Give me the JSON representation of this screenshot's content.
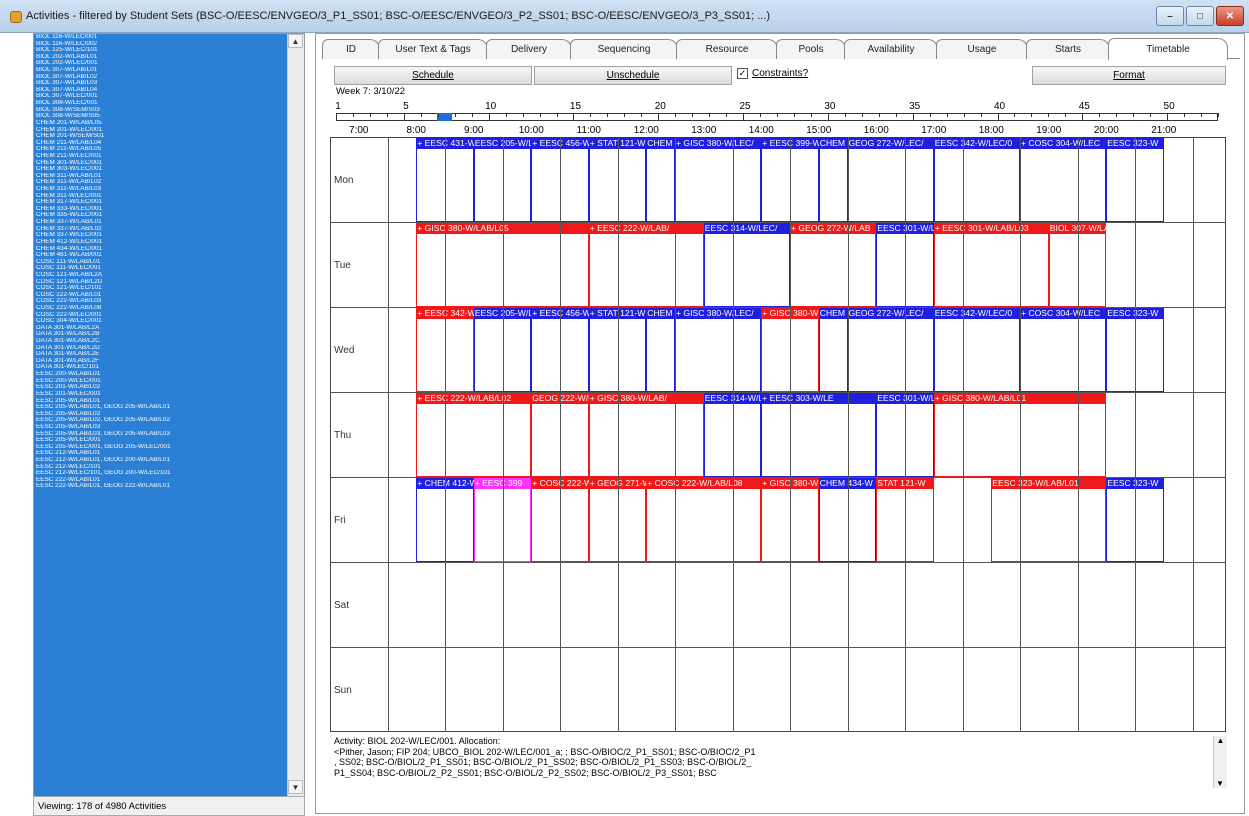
{
  "window": {
    "title": "Activities - filtered by Student Sets (BSC-O/EESC/ENVGEO/3_P1_SS01; BSC-O/EESC/ENVGEO/3_P2_SS01; BSC-O/EESC/ENVGEO/3_P3_SS01; ...)"
  },
  "activities_list": [
    "BIOL 116-W/LEC/001",
    "BIOL 116-W/LEC/002",
    "BIOL 125-W/LEC/101",
    "BIOL 202-W/LAB/L01",
    "BIOL 202-W/LEC/001",
    "BIOL 307-W/LAB/L01",
    "BIOL 307-W/LAB/L02",
    "BIOL 307-W/LAB/L03",
    "BIOL 307-W/LAB/L04",
    "BIOL 307-W/LEC/001",
    "BIOL 308-W/LEC/001",
    "BIOL 308-W/SEM/S03",
    "BIOL 308-W/SEM/S05",
    "CHEM 201-W/LAB/L05",
    "CHEM 201-W/LEC/001",
    "CHEM 201-W/SEM/S01",
    "CHEM 211-W/LAB/L04",
    "CHEM 211-W/LAB/L05",
    "CHEM 211-W/LEC/001",
    "CHEM 301-W/LEC/001",
    "CHEM 303-W/LEC/001",
    "CHEM 311-W/LAB/L01",
    "CHEM 311-W/LAB/L02",
    "CHEM 311-W/LAB/L03",
    "CHEM 311-W/LEC/001",
    "CHEM 317-W/LEC/001",
    "CHEM 333-W/LEC/001",
    "CHEM 335-W/LEC/001",
    "CHEM 337-W/LAB/L01",
    "CHEM 337-W/LAB/L02",
    "CHEM 337-W/LEC/001",
    "CHEM 412-W/LEC/001",
    "CHEM 434-W/LEC/001",
    "CHEM 461-W/LAB/001",
    "COSC 111-W/LAB/L01",
    "COSC 111-W/LEC/001",
    "COSC 121-W/LAB/L2A",
    "COSC 121-W/LAB/L2D",
    "COSC 121-W/LEC/101",
    "COSC 222-W/LAB/L01",
    "COSC 222-W/LAB/L03",
    "COSC 222-W/LAB/L08",
    "COSC 222-W/LEC/001",
    "COSC 304-W/LEC/001",
    "DATA 301-W/LAB/L2A",
    "DATA 301-W/LAB/L2B",
    "DATA 301-W/LAB/L2C",
    "DATA 301-W/LAB/L2D",
    "DATA 301-W/LAB/L2E",
    "DATA 301-W/LAB/L2F",
    "DATA 301-W/LEC/101",
    "EESC 200-W/LAB/L01",
    "EESC 200-W/LEC/001",
    "EESC 201-W/LAB/L02",
    "EESC 201-W/LEC/001",
    "EESC 205-W/LAB/L01",
    "EESC 205-W/LAB/L01, GEOG 205-W/LAB/L01",
    "EESC 205-W/LAB/L02",
    "EESC 205-W/LAB/L02, GEOG 205-W/LAB/L02",
    "EESC 205-W/LAB/L03",
    "EESC 205-W/LAB/L03, GEOG 205-W/LAB/L03",
    "EESC 205-W/LEC/001",
    "EESC 205-W/LEC/001, GEOG 205-W/LEC/001",
    "EESC 212-W/LAB/L01",
    "EESC 212-W/LAB/L01, GEOG 200-W/LAB/L01",
    "EESC 212-W/LEC/101",
    "EESC 212-W/LEC/101, GEOG 200-W/LEC/101",
    "EESC 222-W/LAB/L01",
    "EESC 222-W/LAB/L01, GEOG 222-W/LAB/L01"
  ],
  "list_status": "Viewing: 178 of 4980 Activities",
  "tabs": [
    "ID",
    "User Text & Tags",
    "Delivery",
    "Sequencing",
    "Resource",
    "Pools",
    "Availability",
    "Usage",
    "Starts",
    "Timetable"
  ],
  "toolbar": {
    "schedule": "Schedule",
    "unschedule": "Unschedule",
    "constraints": "Constraints?",
    "constraints_checked": "✓",
    "format": "Format"
  },
  "week": {
    "label": "Week 7: 3/10/22",
    "numbers": [
      "1",
      "5",
      "10",
      "15",
      "20",
      "25",
      "30",
      "35",
      "40",
      "45",
      "50"
    ]
  },
  "hours": [
    "7:00",
    "8:00",
    "9:00",
    "10:00",
    "11:00",
    "12:00",
    "13:00",
    "14:00",
    "15:00",
    "16:00",
    "17:00",
    "18:00",
    "19:00",
    "20:00",
    "21:00"
  ],
  "days": [
    "Mon",
    "Tue",
    "Wed",
    "Thu",
    "Fri",
    "Sat",
    "Sun"
  ],
  "events": [
    {
      "day": 0,
      "start": 8,
      "end": 9,
      "color": "blue",
      "label": "+ EESC 431-W"
    },
    {
      "day": 0,
      "start": 9,
      "end": 10,
      "color": "blue",
      "label": "EESC 205-W/L"
    },
    {
      "day": 0,
      "start": 10,
      "end": 11,
      "color": "blue",
      "label": "+ EESC 456-W"
    },
    {
      "day": 0,
      "start": 11,
      "end": 12,
      "color": "blue",
      "label": "+ STAT 121-W"
    },
    {
      "day": 0,
      "start": 12,
      "end": 12.5,
      "color": "blue",
      "label": "CHEM"
    },
    {
      "day": 0,
      "start": 12.5,
      "end": 14,
      "color": "blue",
      "label": "+ GISC 380-W/LEC/"
    },
    {
      "day": 0,
      "start": 14,
      "end": 15,
      "color": "blue",
      "label": "+ EESC 399-W"
    },
    {
      "day": 0,
      "start": 15,
      "end": 15.5,
      "color": "blue",
      "label": "CHEM"
    },
    {
      "day": 0,
      "start": 15.5,
      "end": 17,
      "color": "blue",
      "label": "GEOG 272-W/LEC/"
    },
    {
      "day": 0,
      "start": 17,
      "end": 18.5,
      "color": "blue",
      "label": "EESC 342-W/LEC/0"
    },
    {
      "day": 0,
      "start": 18.5,
      "end": 20,
      "color": "blue",
      "label": "+ COSC 304-W/LEC"
    },
    {
      "day": 0,
      "start": 20,
      "end": 21,
      "color": "blue",
      "label": "EESC 323-W"
    },
    {
      "day": 1,
      "start": 8,
      "end": 11,
      "color": "red",
      "label": "+ GISC 380-W/LAB/L05"
    },
    {
      "day": 1,
      "start": 11,
      "end": 13,
      "color": "red",
      "label": "+ EESC 222-W/LAB/"
    },
    {
      "day": 1,
      "start": 13,
      "end": 14.5,
      "color": "blue",
      "label": "EESC 314-W/LEC/"
    },
    {
      "day": 1,
      "start": 14.5,
      "end": 16,
      "color": "red",
      "label": "+ GEOG 272-W/LAB"
    },
    {
      "day": 1,
      "start": 16,
      "end": 17,
      "color": "blue",
      "label": "EESC 301-W/LEC/"
    },
    {
      "day": 1,
      "start": 17,
      "end": 19,
      "color": "red",
      "label": "+ EESC 301-W/LAB/L03"
    },
    {
      "day": 1,
      "start": 19,
      "end": 20,
      "color": "red",
      "label": "BIOL 307-W/LA"
    },
    {
      "day": 2,
      "start": 8,
      "end": 9,
      "color": "red",
      "label": "+ EESC 342-W"
    },
    {
      "day": 2,
      "start": 9,
      "end": 10,
      "color": "blue",
      "label": "EESC 205-W/L"
    },
    {
      "day": 2,
      "start": 10,
      "end": 11,
      "color": "blue",
      "label": "+ EESC 456-W"
    },
    {
      "day": 2,
      "start": 11,
      "end": 12,
      "color": "blue",
      "label": "+ STAT 121-W"
    },
    {
      "day": 2,
      "start": 12,
      "end": 12.5,
      "color": "blue",
      "label": "CHEM"
    },
    {
      "day": 2,
      "start": 12.5,
      "end": 14,
      "color": "blue",
      "label": "+ GISC 380-W/LEC/"
    },
    {
      "day": 2,
      "start": 14,
      "end": 15,
      "color": "red",
      "label": "+ GISC 380-W"
    },
    {
      "day": 2,
      "start": 15,
      "end": 15.5,
      "color": "blue",
      "label": "CHEM"
    },
    {
      "day": 2,
      "start": 15.5,
      "end": 17,
      "color": "blue",
      "label": "GEOG 272-W/LEC/"
    },
    {
      "day": 2,
      "start": 17,
      "end": 18.5,
      "color": "blue",
      "label": "EESC 342-W/LEC/0"
    },
    {
      "day": 2,
      "start": 18.5,
      "end": 20,
      "color": "blue",
      "label": "+ COSC 304-W/LEC"
    },
    {
      "day": 2,
      "start": 20,
      "end": 21,
      "color": "blue",
      "label": "EESC 323-W"
    },
    {
      "day": 3,
      "start": 8,
      "end": 10,
      "color": "red",
      "label": "+ EESC 222-W/LAB/L02"
    },
    {
      "day": 3,
      "start": 10,
      "end": 11,
      "color": "red",
      "label": "GEOG 222-W/L"
    },
    {
      "day": 3,
      "start": 11,
      "end": 13,
      "color": "red",
      "label": "+ GISC 380-W/LAB/"
    },
    {
      "day": 3,
      "start": 13,
      "end": 14,
      "color": "blue",
      "label": "EESC 314-W/LEC/"
    },
    {
      "day": 3,
      "start": 14,
      "end": 16,
      "color": "blue",
      "label": "+ EESC 303-W/LE"
    },
    {
      "day": 3,
      "start": 16,
      "end": 17,
      "color": "blue",
      "label": "EESC 301-W/LEC/"
    },
    {
      "day": 3,
      "start": 17,
      "end": 20,
      "color": "red",
      "label": "+ GISC 380-W/LAB/L01"
    },
    {
      "day": 4,
      "start": 8,
      "end": 9,
      "color": "blue",
      "label": "+ CHEM 412-W"
    },
    {
      "day": 4,
      "start": 9,
      "end": 10,
      "color": "magenta",
      "label": "+ EESC 399"
    },
    {
      "day": 4,
      "start": 10,
      "end": 11,
      "color": "red",
      "label": "+ COSC 222-W"
    },
    {
      "day": 4,
      "start": 11,
      "end": 12,
      "color": "red",
      "label": "+ GEOG 271-W"
    },
    {
      "day": 4,
      "start": 12,
      "end": 14,
      "color": "red",
      "label": "+ COSC 222-W/LAB/L08"
    },
    {
      "day": 4,
      "start": 14,
      "end": 15,
      "color": "red",
      "label": "+ GISC 380-W"
    },
    {
      "day": 4,
      "start": 15,
      "end": 16,
      "color": "blue",
      "label": "CHEM 434-W"
    },
    {
      "day": 4,
      "start": 16,
      "end": 17,
      "color": "red",
      "label": "STAT 121-W"
    },
    {
      "day": 4,
      "start": 18,
      "end": 20,
      "color": "red",
      "label": "EESC 323-W/LAB/L01"
    },
    {
      "day": 4,
      "start": 20,
      "end": 21,
      "color": "blue",
      "label": "EESC 323-W"
    }
  ],
  "info": [
    "Activity: BIOL 202-W/LEC/001.  Allocation:",
    "<Pither, Jason; FIP 204; UBCO_BIOL 202-W/LEC/001_a; ; BSC-O/BIOC/2_P1_SS01; BSC-O/BIOC/2_P1",
    ", SS02; BSC-O/BIOL/2_P1_SS01; BSC-O/BIOL/2_P1_SS02; BSC-O/BIOL/2_P1_SS03; BSC-O/BIOL/2_",
    "P1_SS04; BSC-O/BIOL/2_P2_SS01; BSC-O/BIOL/2_P2_SS02; BSC-O/BIOL/2_P3_SS01; BSC"
  ],
  "colors": {
    "blue": "#1f1fe0",
    "red": "#f01818",
    "magenta": "#ff33ff",
    "list_bg": "#2b7fd4"
  }
}
